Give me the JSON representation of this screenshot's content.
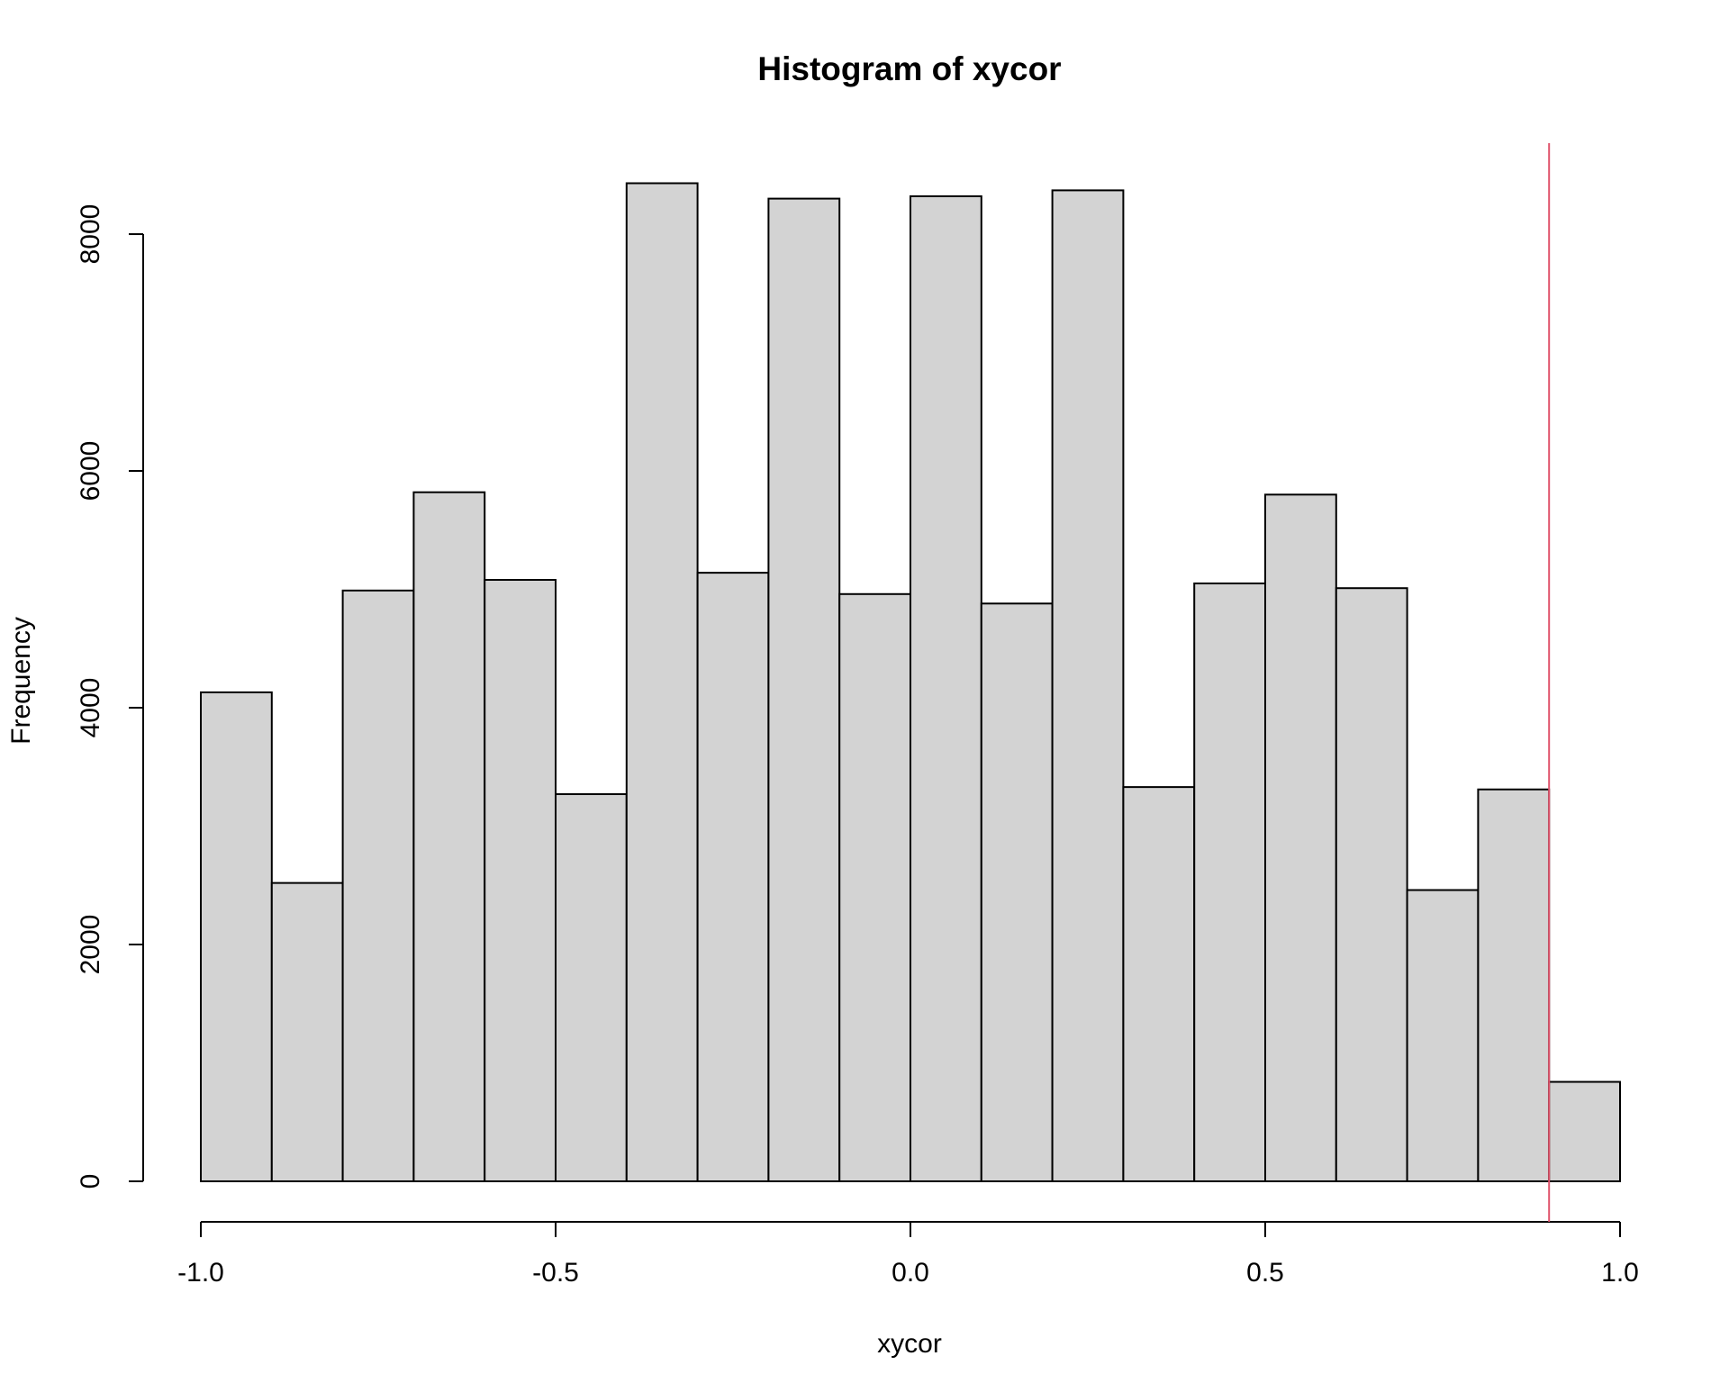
{
  "chart_data": {
    "type": "histogram",
    "title": "Histogram of xycor",
    "x_label": "xycor",
    "y_label": "Frequency",
    "bins": [
      -1,
      -0.9,
      -0.8,
      -0.7,
      -0.6,
      -0.5,
      -0.4,
      -0.3,
      -0.2,
      -0.1,
      0,
      0.1,
      0.2,
      0.3,
      0.4,
      0.5,
      0.6,
      0.7,
      0.8,
      0.9,
      1
    ],
    "counts": [
      4130,
      2520,
      4990,
      5820,
      5080,
      3270,
      8430,
      5140,
      8300,
      4960,
      8320,
      4880,
      8370,
      3330,
      5050,
      5800,
      5010,
      2460,
      3310,
      840
    ],
    "color": "#d3d3d3",
    "xlim": [
      -1,
      1
    ],
    "xticks": [
      {
        "value": -1,
        "label": "-1.0"
      },
      -0.5,
      {
        "value": 0,
        "label": "0.0"
      },
      0.5,
      {
        "value": 1,
        "label": "1.0"
      }
    ],
    "ylim": [
      0,
      8430
    ],
    "yticks": [
      0,
      2000,
      4000,
      6000,
      8000
    ],
    "vline": {
      "x": 0.9,
      "color": "#df536b"
    }
  }
}
